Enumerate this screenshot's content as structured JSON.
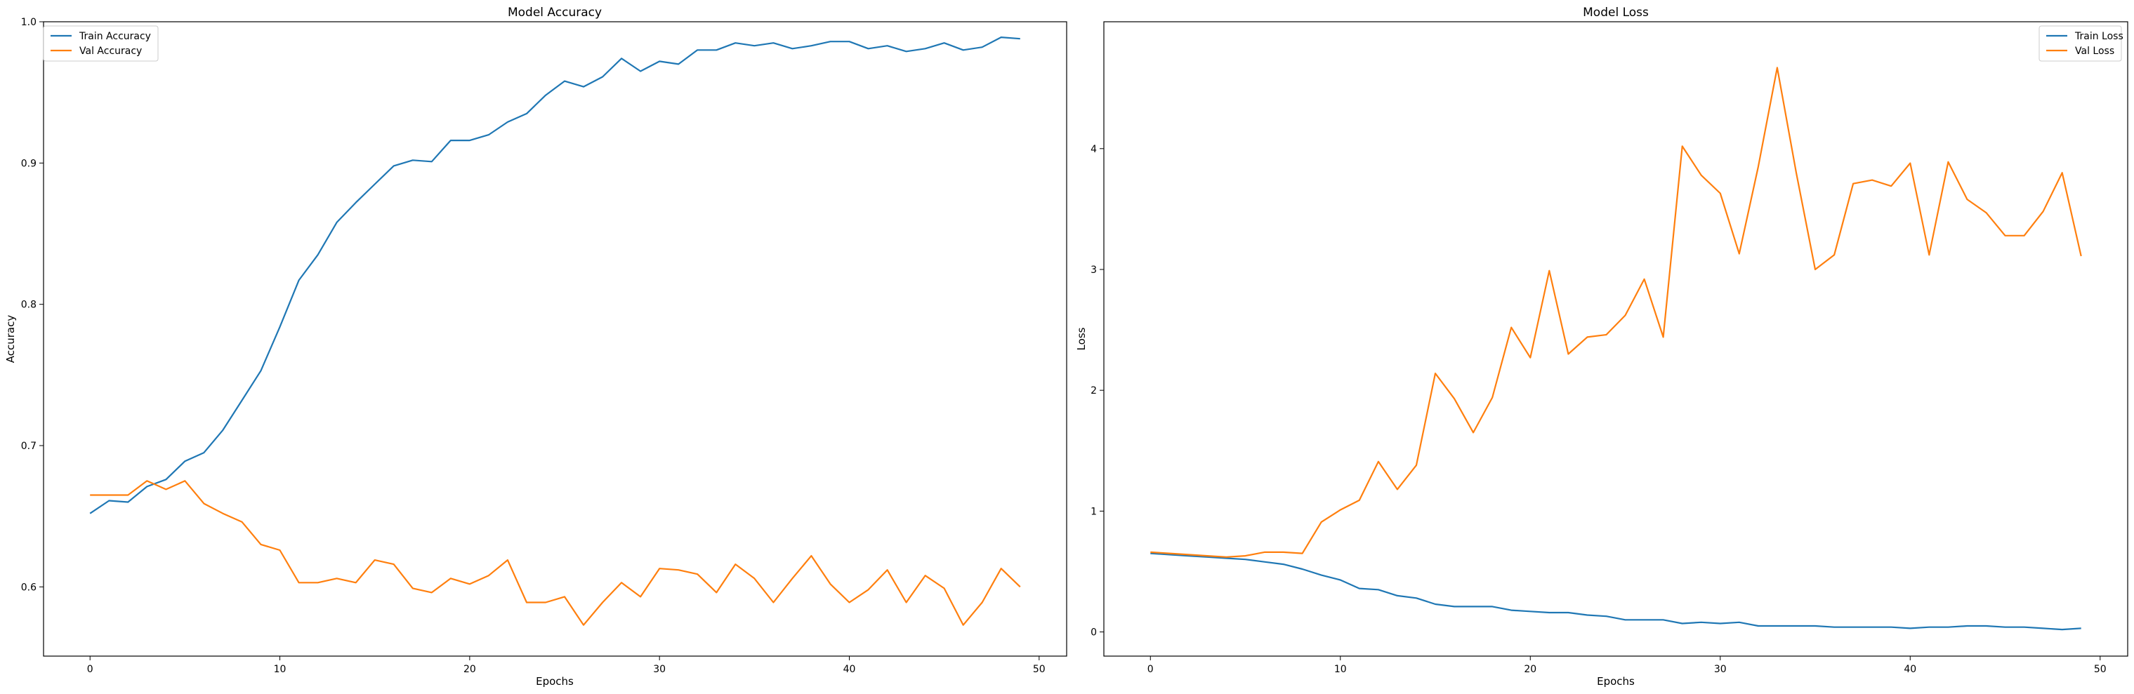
{
  "colors": {
    "train": "#1f77b4",
    "val": "#ff7f0e",
    "axes": "#000000",
    "legend_border": "#cccccc"
  },
  "chart_data": [
    {
      "type": "line",
      "title": "Model Accuracy",
      "xlabel": "Epochs",
      "ylabel": "Accuracy",
      "xlim": [
        -2.45,
        51.45
      ],
      "ylim": [
        0.551,
        1.0
      ],
      "xticks": [
        0,
        10,
        20,
        30,
        40,
        50
      ],
      "yticks": [
        0.6,
        0.7,
        0.8,
        0.9,
        1.0
      ],
      "xtick_labels": [
        "0",
        "10",
        "20",
        "30",
        "40",
        "50"
      ],
      "ytick_labels": [
        "0.6",
        "0.7",
        "0.8",
        "0.9",
        "1.0"
      ],
      "legend_position": "upper-left",
      "grid": false,
      "x": [
        0,
        1,
        2,
        3,
        4,
        5,
        6,
        7,
        8,
        9,
        10,
        11,
        12,
        13,
        14,
        15,
        16,
        17,
        18,
        19,
        20,
        21,
        22,
        23,
        24,
        25,
        26,
        27,
        28,
        29,
        30,
        31,
        32,
        33,
        34,
        35,
        36,
        37,
        38,
        39,
        40,
        41,
        42,
        43,
        44,
        45,
        46,
        47,
        48,
        49
      ],
      "series": [
        {
          "name": "Train Accuracy",
          "values": [
            0.652,
            0.661,
            0.66,
            0.671,
            0.676,
            0.689,
            0.695,
            0.711,
            0.732,
            0.753,
            0.784,
            0.817,
            0.835,
            0.858,
            0.872,
            0.885,
            0.898,
            0.902,
            0.901,
            0.916,
            0.916,
            0.92,
            0.929,
            0.935,
            0.948,
            0.958,
            0.954,
            0.961,
            0.974,
            0.965,
            0.972,
            0.97,
            0.98,
            0.98,
            0.985,
            0.983,
            0.985,
            0.981,
            0.983,
            0.986,
            0.986,
            0.981,
            0.983,
            0.979,
            0.981,
            0.985,
            0.98,
            0.982,
            0.989,
            0.988
          ]
        },
        {
          "name": "Val Accuracy",
          "values": [
            0.665,
            0.665,
            0.665,
            0.675,
            0.669,
            0.675,
            0.659,
            0.652,
            0.646,
            0.63,
            0.626,
            0.603,
            0.603,
            0.606,
            0.603,
            0.619,
            0.616,
            0.599,
            0.596,
            0.606,
            0.602,
            0.608,
            0.619,
            0.589,
            0.589,
            0.593,
            0.573,
            0.589,
            0.603,
            0.593,
            0.613,
            0.612,
            0.609,
            0.596,
            0.616,
            0.606,
            0.589,
            0.606,
            0.622,
            0.602,
            0.589,
            0.598,
            0.612,
            0.589,
            0.608,
            0.599,
            0.573,
            0.589,
            0.613,
            0.6
          ]
        }
      ]
    },
    {
      "type": "line",
      "title": "Model Loss",
      "xlabel": "Epochs",
      "ylabel": "Loss",
      "xlim": [
        -2.45,
        51.45
      ],
      "ylim": [
        -0.2,
        5.05
      ],
      "xticks": [
        0,
        10,
        20,
        30,
        40,
        50
      ],
      "yticks": [
        0,
        1,
        2,
        3,
        4
      ],
      "xtick_labels": [
        "0",
        "10",
        "20",
        "30",
        "40",
        "50"
      ],
      "ytick_labels": [
        "0",
        "1",
        "2",
        "3",
        "4"
      ],
      "legend_position": "upper-right",
      "grid": false,
      "x": [
        0,
        1,
        2,
        3,
        4,
        5,
        6,
        7,
        8,
        9,
        10,
        11,
        12,
        13,
        14,
        15,
        16,
        17,
        18,
        19,
        20,
        21,
        22,
        23,
        24,
        25,
        26,
        27,
        28,
        29,
        30,
        31,
        32,
        33,
        34,
        35,
        36,
        37,
        38,
        39,
        40,
        41,
        42,
        43,
        44,
        45,
        46,
        47,
        48,
        49
      ],
      "series": [
        {
          "name": "Train Loss",
          "values": [
            0.65,
            0.64,
            0.63,
            0.62,
            0.61,
            0.6,
            0.58,
            0.56,
            0.52,
            0.47,
            0.43,
            0.36,
            0.35,
            0.3,
            0.28,
            0.23,
            0.21,
            0.21,
            0.21,
            0.18,
            0.17,
            0.16,
            0.16,
            0.14,
            0.13,
            0.1,
            0.1,
            0.1,
            0.07,
            0.08,
            0.07,
            0.08,
            0.05,
            0.05,
            0.05,
            0.05,
            0.04,
            0.04,
            0.04,
            0.04,
            0.03,
            0.04,
            0.04,
            0.05,
            0.05,
            0.04,
            0.04,
            0.03,
            0.02,
            0.03
          ]
        },
        {
          "name": "Val Loss",
          "values": [
            0.66,
            0.65,
            0.64,
            0.63,
            0.62,
            0.63,
            0.66,
            0.66,
            0.65,
            0.91,
            1.01,
            1.09,
            1.41,
            1.18,
            1.38,
            2.14,
            1.93,
            1.65,
            1.94,
            2.52,
            2.27,
            2.99,
            2.3,
            2.44,
            2.46,
            2.62,
            2.92,
            2.44,
            4.02,
            3.78,
            3.63,
            3.13,
            3.85,
            4.67,
            3.8,
            3.0,
            3.12,
            3.71,
            3.74,
            3.69,
            3.88,
            3.12,
            3.89,
            3.58,
            3.47,
            3.28,
            3.28,
            3.48,
            3.8,
            3.11
          ]
        }
      ]
    }
  ]
}
